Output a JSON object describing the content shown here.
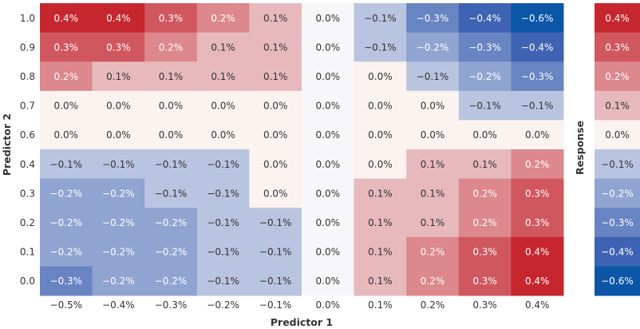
{
  "chart_data": {
    "type": "heatmap",
    "xlabel": "Predictor 1",
    "ylabel": "Predictor 2",
    "legend_label": "Response",
    "x": [
      "−0.5%",
      "−0.4%",
      "−0.3%",
      "−0.2%",
      "−0.1%",
      "0.0%",
      "0.1%",
      "0.2%",
      "0.3%",
      "0.4%"
    ],
    "y": [
      "1.0",
      "0.9",
      "0.8",
      "0.7",
      "0.6",
      "0.4",
      "0.3",
      "0.2",
      "0.1",
      "0.0"
    ],
    "values": [
      [
        0.4,
        0.4,
        0.3,
        0.2,
        0.1,
        0.0,
        -0.1,
        -0.3,
        -0.4,
        -0.6
      ],
      [
        0.3,
        0.3,
        0.2,
        0.1,
        0.1,
        0.0,
        -0.1,
        -0.2,
        -0.3,
        -0.4
      ],
      [
        0.2,
        0.1,
        0.1,
        0.1,
        0.1,
        0.0,
        0.0,
        -0.1,
        -0.2,
        -0.3
      ],
      [
        0.0,
        0.0,
        0.0,
        0.0,
        0.0,
        0.0,
        0.0,
        0.0,
        -0.1,
        -0.1
      ],
      [
        0.0,
        0.0,
        0.0,
        0.0,
        0.0,
        0.0,
        0.0,
        0.0,
        0.0,
        0.0
      ],
      [
        -0.1,
        -0.1,
        -0.1,
        -0.1,
        0.0,
        0.0,
        0.0,
        0.1,
        0.1,
        0.2
      ],
      [
        -0.2,
        -0.2,
        -0.1,
        -0.1,
        0.0,
        0.0,
        0.1,
        0.1,
        0.2,
        0.3
      ],
      [
        -0.2,
        -0.2,
        -0.2,
        -0.1,
        -0.1,
        0.0,
        0.1,
        0.1,
        0.2,
        0.3
      ],
      [
        -0.2,
        -0.2,
        -0.2,
        -0.1,
        -0.1,
        0.0,
        0.1,
        0.2,
        0.3,
        0.4
      ],
      [
        -0.3,
        -0.2,
        -0.2,
        -0.1,
        -0.1,
        0.0,
        0.1,
        0.2,
        0.3,
        0.4
      ]
    ],
    "value_labels": [
      [
        "0.4%",
        "0.4%",
        "0.3%",
        "0.2%",
        "0.1%",
        "0.0%",
        "−0.1%",
        "−0.3%",
        "−0.4%",
        "−0.6%"
      ],
      [
        "0.3%",
        "0.3%",
        "0.2%",
        "0.1%",
        "0.1%",
        "0.0%",
        "−0.1%",
        "−0.2%",
        "−0.3%",
        "−0.4%"
      ],
      [
        "0.2%",
        "0.1%",
        "0.1%",
        "0.1%",
        "0.1%",
        "0.0%",
        "0.0%",
        "−0.1%",
        "−0.2%",
        "−0.3%"
      ],
      [
        "0.0%",
        "0.0%",
        "0.0%",
        "0.0%",
        "0.0%",
        "0.0%",
        "0.0%",
        "0.0%",
        "−0.1%",
        "−0.1%"
      ],
      [
        "0.0%",
        "0.0%",
        "0.0%",
        "0.0%",
        "0.0%",
        "0.0%",
        "0.0%",
        "0.0%",
        "0.0%",
        "0.0%"
      ],
      [
        "−0.1%",
        "−0.1%",
        "−0.1%",
        "−0.1%",
        "0.0%",
        "0.0%",
        "0.0%",
        "0.1%",
        "0.1%",
        "0.2%"
      ],
      [
        "−0.2%",
        "−0.2%",
        "−0.1%",
        "−0.1%",
        "0.0%",
        "0.0%",
        "0.1%",
        "0.1%",
        "0.2%",
        "0.3%"
      ],
      [
        "−0.2%",
        "−0.2%",
        "−0.2%",
        "−0.1%",
        "−0.1%",
        "0.0%",
        "0.1%",
        "0.1%",
        "0.2%",
        "0.3%"
      ],
      [
        "−0.2%",
        "−0.2%",
        "−0.2%",
        "−0.1%",
        "−0.1%",
        "0.0%",
        "0.1%",
        "0.2%",
        "0.3%",
        "0.4%"
      ],
      [
        "−0.3%",
        "−0.2%",
        "−0.2%",
        "−0.1%",
        "−0.1%",
        "0.0%",
        "0.1%",
        "0.2%",
        "0.3%",
        "0.4%"
      ]
    ],
    "legend": {
      "values": [
        0.4,
        0.3,
        0.2,
        0.1,
        0.0,
        -0.1,
        -0.2,
        -0.3,
        -0.4,
        -0.6
      ],
      "labels": [
        "0.4%",
        "0.3%",
        "0.2%",
        "0.1%",
        "0.0%",
        "−0.1%",
        "−0.2%",
        "−0.3%",
        "−0.4%",
        "−0.6%"
      ],
      "position": "right"
    },
    "colors": {
      "positive": "#c6262e",
      "neutral": "#f4f4f6",
      "negative": "#3f63b3",
      "strong_negative": "#0b56a7"
    },
    "grid": false
  }
}
